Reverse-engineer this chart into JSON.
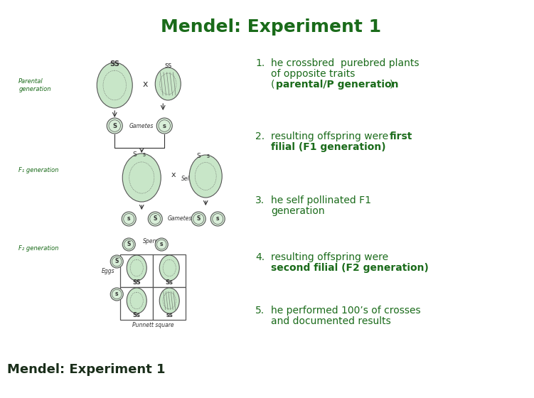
{
  "title": "Mendel: Experiment 1",
  "title_color": "#1a6b1a",
  "title_fontsize": 18,
  "bg_color": "#ffffff",
  "text_color": "#1a6b1a",
  "footer": "Mendel: Experiment 1",
  "footer_color": "#1a2e1a",
  "footer_fontsize": 13,
  "diagram_color": "#c8e6c8",
  "diagram_edge": "#555555",
  "label_color": "#333333",
  "items": [
    {
      "line1": "he crossbred  purebred plants",
      "line2": "of opposite traits",
      "line3_normal": "(",
      "line3_bold": "parental/P generation",
      "line3_end": ")"
    },
    {
      "line1_normal": "resulting offspring were ",
      "line1_bold": "first",
      "line2_bold": "filial (F1 generation)"
    },
    {
      "line1": "he self pollinated F1",
      "line2": "generation"
    },
    {
      "line1": "resulting offspring were",
      "line2_bold": "second filial (F2 generation)"
    },
    {
      "line1": "he performed 100’s of crosses",
      "line2": "and documented results"
    }
  ]
}
